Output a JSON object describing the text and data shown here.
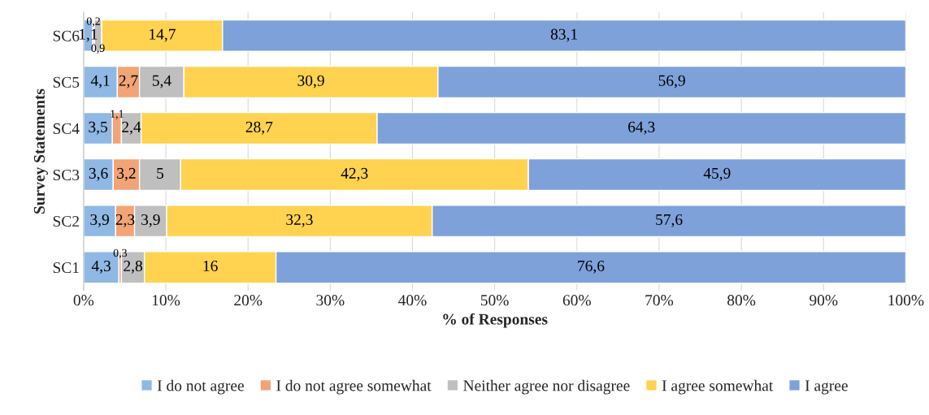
{
  "chart_data": {
    "type": "bar",
    "orientation": "horizontal",
    "stacked": true,
    "xlabel": "% of Responses",
    "ylabel": "Survey Statements",
    "categories": [
      "SC6",
      "SC5",
      "SC4",
      "SC3",
      "SC2",
      "SC1"
    ],
    "series": [
      {
        "name": "I do not agree",
        "color": "#8fb8e4",
        "values": [
          1.1,
          4.1,
          3.5,
          3.6,
          3.9,
          4.3
        ],
        "value_labels": [
          "1,1",
          "4,1",
          "3,5",
          "3,6",
          "3,9",
          "4,3"
        ]
      },
      {
        "name": "I do not agree somewhat",
        "color": "#f2a477",
        "values": [
          0.2,
          2.7,
          1.1,
          3.2,
          2.3,
          0.3
        ],
        "value_labels": [
          "0,2",
          "2,7",
          "1,1",
          "3,2",
          "2,3",
          "0,3"
        ]
      },
      {
        "name": "Neither agree nor disagree",
        "color": "#bfbfbf",
        "values": [
          0.9,
          5.4,
          2.4,
          5,
          3.9,
          2.8
        ],
        "value_labels": [
          "0,9",
          "5,4",
          "2,4",
          "5",
          "3,9",
          "2,8"
        ]
      },
      {
        "name": "I agree somewhat",
        "color": "#ffd24f",
        "values": [
          14.7,
          30.9,
          28.7,
          42.3,
          32.3,
          16
        ],
        "value_labels": [
          "14,7",
          "30,9",
          "28,7",
          "42,3",
          "32,3",
          "16"
        ]
      },
      {
        "name": "I agree",
        "color": "#7ea1da",
        "values": [
          83.1,
          56.9,
          64.3,
          45.9,
          57.6,
          76.6
        ],
        "value_labels": [
          "83,1",
          "56,9",
          "64,3",
          "45,9",
          "57,6",
          "76,6"
        ]
      }
    ],
    "xlim": [
      0,
      100
    ],
    "xticks": [
      {
        "value": 0,
        "label": "0%"
      },
      {
        "value": 10,
        "label": "10%"
      },
      {
        "value": 20,
        "label": "20%"
      },
      {
        "value": 30,
        "label": "30%"
      },
      {
        "value": 40,
        "label": "40%"
      },
      {
        "value": 50,
        "label": "50%"
      },
      {
        "value": 60,
        "label": "60%"
      },
      {
        "value": 70,
        "label": "70%"
      },
      {
        "value": 80,
        "label": "80%"
      },
      {
        "value": 90,
        "label": "90%"
      },
      {
        "value": 100,
        "label": "100%"
      }
    ],
    "grid": "x",
    "legend": "bottom"
  }
}
